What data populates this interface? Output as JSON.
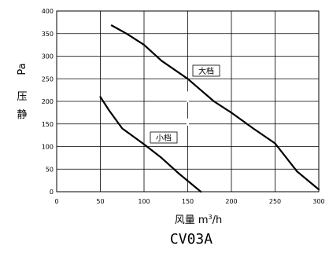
{
  "chart_data": {
    "type": "line",
    "title": "CV03A",
    "xlabel_main": "风量 m",
    "xlabel_sup": "3",
    "xlabel_tail": "/h",
    "ylabel_chars": [
      "静",
      "压"
    ],
    "ylabel_unit": "Pa",
    "xlim": [
      0,
      300
    ],
    "ylim": [
      0,
      400
    ],
    "xticks": [
      0,
      50,
      100,
      150,
      200,
      250,
      300
    ],
    "yticks": [
      0,
      50,
      100,
      150,
      200,
      250,
      300,
      350,
      400
    ],
    "grid": true,
    "series": [
      {
        "name": "大档",
        "points": [
          [
            63,
            368
          ],
          [
            80,
            350
          ],
          [
            100,
            325
          ],
          [
            120,
            290
          ],
          [
            150,
            250
          ],
          [
            180,
            200
          ],
          [
            200,
            175
          ],
          [
            225,
            140
          ],
          [
            250,
            107
          ],
          [
            275,
            45
          ],
          [
            300,
            5
          ]
        ]
      },
      {
        "name": "小档",
        "points": [
          [
            50,
            210
          ],
          [
            60,
            180
          ],
          [
            75,
            140
          ],
          [
            100,
            105
          ],
          [
            120,
            75
          ],
          [
            140,
            40
          ],
          [
            165,
            0
          ]
        ]
      }
    ]
  }
}
